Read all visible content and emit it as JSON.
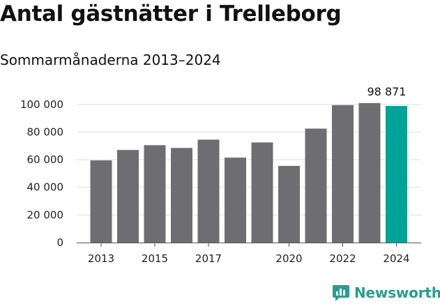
{
  "title": "Antal gästnätter i Trelleborg",
  "subtitle": "Sommarmånaderna 2013–2024",
  "brand": {
    "name": "Newsworthy",
    "icon": "bar-chart-icon",
    "color": "#2a9d8f"
  },
  "colors": {
    "bar": "#6e6d72",
    "highlight": "#00a398",
    "grid": "#dddddd",
    "axis": "#555555"
  },
  "chart_data": {
    "type": "bar",
    "categories": [
      "2013",
      "2014",
      "2015",
      "2016",
      "2017",
      "2018",
      "2019",
      "2020",
      "2021",
      "2022",
      "2023",
      "2024"
    ],
    "values": [
      59500,
      67000,
      70500,
      68500,
      74500,
      61500,
      72500,
      55500,
      82500,
      99500,
      101000,
      98871
    ],
    "x_tick_labels": [
      "2013",
      "2015",
      "2017",
      "2020",
      "2022",
      "2024"
    ],
    "y_ticks": [
      0,
      20000,
      40000,
      60000,
      80000,
      100000
    ],
    "y_tick_labels": [
      "0",
      "20 000",
      "40 000",
      "60 000",
      "80 000",
      "100 000"
    ],
    "ylim": [
      0,
      110000
    ],
    "highlight_index": 11,
    "annotation": "98 871",
    "grid": true,
    "title": "Antal gästnätter i Trelleborg",
    "subtitle": "Sommarmånaderna 2013–2024"
  }
}
